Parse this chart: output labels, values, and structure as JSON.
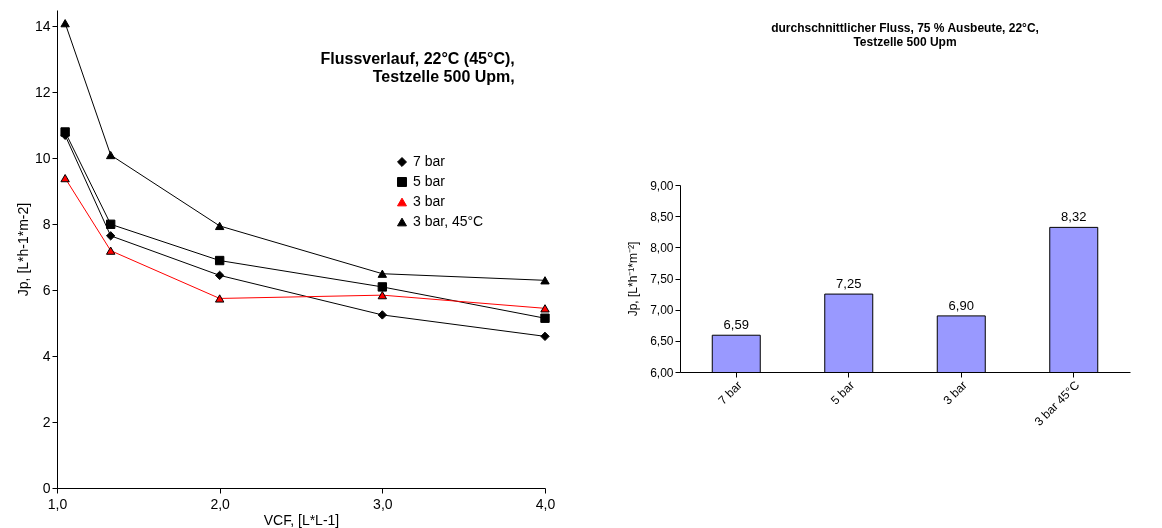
{
  "chart_data": [
    {
      "type": "line",
      "title": [
        "Flussverlauf, 22°C (45°C),",
        "Testzelle 500 Upm,"
      ],
      "xlabel": "VCF, [L*L-1]",
      "ylabel": "Jp, [L*h-1*m-2]",
      "x": [
        1.05,
        1.33,
        2,
        3,
        4
      ],
      "series": [
        {
          "name": "7 bar",
          "color": "#000000",
          "marker": "diamond",
          "values": [
            10.7,
            7.65,
            6.45,
            5.25,
            4.6
          ]
        },
        {
          "name": "5 bar",
          "color": "#000000",
          "marker": "square",
          "values": [
            10.8,
            8.0,
            6.9,
            6.1,
            5.15
          ]
        },
        {
          "name": "3 bar",
          "color": "#ff0000",
          "marker": "triangle",
          "values": [
            9.4,
            7.2,
            5.75,
            5.85,
            5.45
          ]
        },
        {
          "name": "3 bar, 45°C",
          "color": "#000000",
          "marker": "triangle",
          "values": [
            14.1,
            10.1,
            7.95,
            6.5,
            6.3
          ]
        }
      ],
      "xlim": [
        1,
        4
      ],
      "xticks": [
        {
          "value": 1,
          "label": "1,0"
        },
        {
          "value": 2,
          "label": "2,0"
        },
        {
          "value": 3,
          "label": "3,0"
        },
        {
          "value": 4,
          "label": "4,0"
        }
      ],
      "ylim": [
        0,
        14.5
      ],
      "yticks": [
        0,
        2,
        4,
        6,
        8,
        10,
        12,
        14
      ],
      "legend": "top right",
      "grid": false
    },
    {
      "type": "bar",
      "title": [
        "durchschnittlicher Fluss, 75 % Ausbeute, 22°C,",
        "Testzelle 500 Upm"
      ],
      "ylabel": "Jp, [L*h⁻¹*m⁻²]",
      "categories": [
        "7 bar",
        "5 bar",
        "3 bar",
        "3 bar 45°C"
      ],
      "values": [
        6.59,
        7.25,
        6.9,
        8.32
      ],
      "color": "#9999ff",
      "value_labels": [
        "6,59",
        "7,25",
        "6,90",
        "8,32"
      ],
      "ylim": [
        6,
        9
      ],
      "yticks": [
        {
          "value": 6,
          "label": "6,00"
        },
        {
          "value": 6.5,
          "label": "6,50"
        },
        {
          "value": 7,
          "label": "7,00"
        },
        {
          "value": 7.5,
          "label": "7,50"
        },
        {
          "value": 8,
          "label": "8,00"
        },
        {
          "value": 8.5,
          "label": "8,50"
        },
        {
          "value": 9,
          "label": "9,00"
        }
      ],
      "grid": false
    }
  ]
}
